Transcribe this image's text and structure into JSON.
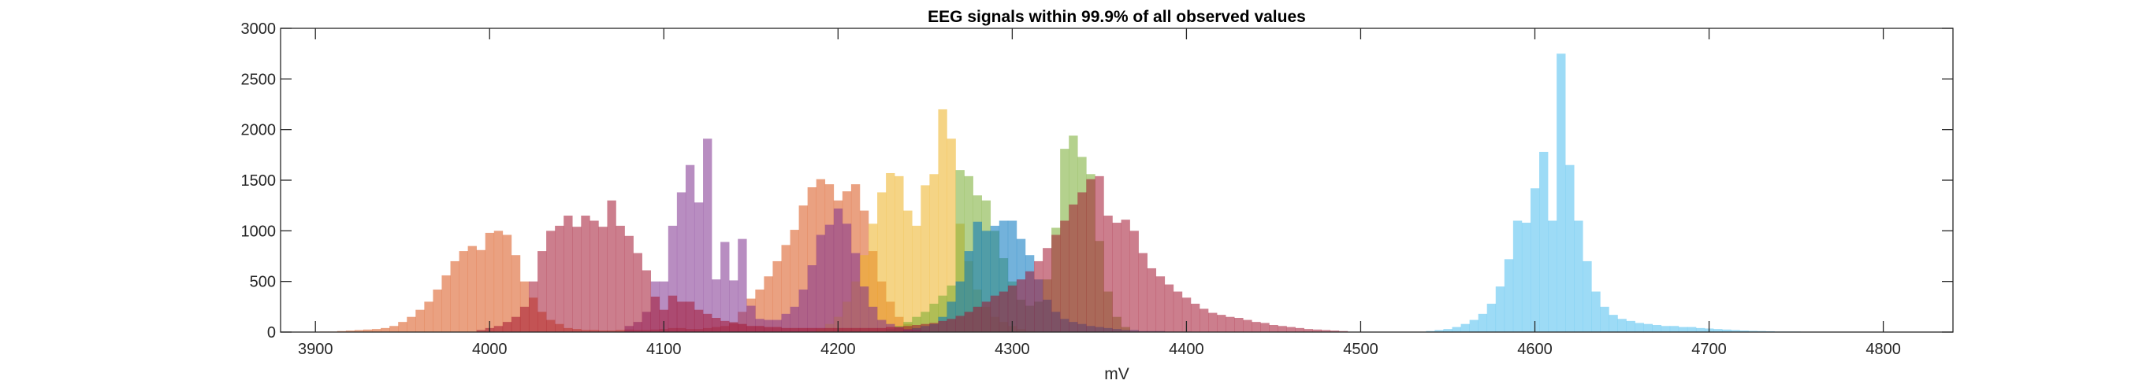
{
  "chart_data": {
    "type": "histogram",
    "title": "EEG signals within 99.9% of all observed values",
    "xlabel": "mV",
    "ylabel": "",
    "xlim": [
      3880,
      4840
    ],
    "ylim": [
      0,
      3000
    ],
    "xticks": [
      3900,
      4000,
      4100,
      4200,
      4300,
      4400,
      4500,
      4600,
      4700,
      4800
    ],
    "yticks": [
      0,
      500,
      1000,
      1500,
      2000,
      2500,
      3000
    ],
    "grid": false,
    "bin_width": 5,
    "bar_opacity": 0.55,
    "series": [
      {
        "color": "#D95319",
        "x": [
          3905,
          3910,
          3915,
          3920,
          3925,
          3930,
          3935,
          3940,
          3945,
          3950,
          3955,
          3960,
          3965,
          3970,
          3975,
          3980,
          3985,
          3990,
          3995,
          4000,
          4005,
          4010,
          4015,
          4020,
          4025,
          4030,
          4035,
          4040,
          4045,
          4050,
          4055,
          4060,
          4065,
          4070,
          4075,
          4080,
          4085,
          4090,
          4095,
          4100,
          4105,
          4110,
          4115,
          4120,
          4125,
          4130,
          4135,
          4140,
          4145,
          4150,
          4155,
          4160,
          4165,
          4170,
          4175,
          4180,
          4185,
          4190,
          4195,
          4200,
          4205,
          4210,
          4215,
          4220,
          4225,
          4230,
          4235,
          4240,
          4245,
          4250
        ],
        "values": [
          5,
          5,
          10,
          15,
          20,
          25,
          30,
          40,
          60,
          100,
          150,
          220,
          300,
          420,
          560,
          700,
          800,
          850,
          810,
          980,
          1000,
          960,
          760,
          500,
          340,
          200,
          120,
          80,
          40,
          30,
          20,
          20,
          15,
          15,
          20,
          25,
          20,
          20,
          25,
          30,
          40,
          40,
          30,
          30,
          40,
          50,
          60,
          100,
          200,
          330,
          420,
          550,
          700,
          860,
          1010,
          1250,
          1430,
          1510,
          1460,
          1300,
          1390,
          1460,
          1200,
          800,
          500,
          300,
          150,
          80,
          40,
          20
        ]
      },
      {
        "color": "#EDB120",
        "x": [
          4190,
          4195,
          4200,
          4205,
          4210,
          4215,
          4220,
          4225,
          4230,
          4235,
          4240,
          4245,
          4250,
          4255,
          4260,
          4265,
          4270,
          4275,
          4280,
          4285,
          4290,
          4295,
          4300,
          4305,
          4310
        ],
        "values": [
          30,
          80,
          150,
          300,
          500,
          760,
          1070,
          1380,
          1570,
          1540,
          1200,
          1050,
          1450,
          1560,
          2200,
          1910,
          1070,
          700,
          420,
          250,
          150,
          100,
          60,
          30,
          10
        ]
      },
      {
        "color": "#77AC30",
        "x": [
          4230,
          4235,
          4240,
          4245,
          4250,
          4255,
          4260,
          4265,
          4270,
          4275,
          4280,
          4285,
          4290,
          4295,
          4300,
          4305,
          4310,
          4315,
          4320,
          4325,
          4330,
          4335,
          4340,
          4345,
          4350,
          4355,
          4360,
          4365
        ],
        "values": [
          30,
          60,
          100,
          150,
          200,
          280,
          360,
          460,
          1600,
          1540,
          1350,
          1300,
          1000,
          730,
          500,
          320,
          260,
          300,
          520,
          1030,
          1810,
          1940,
          1730,
          1560,
          900,
          400,
          150,
          50
        ]
      },
      {
        "color": "#0072BD",
        "x": [
          4240,
          4245,
          4250,
          4255,
          4260,
          4265,
          4270,
          4275,
          4280,
          4285,
          4290,
          4295,
          4300,
          4305,
          4310,
          4315,
          4320,
          4325,
          4330,
          4335,
          4340,
          4345,
          4350,
          4355,
          4360,
          4365,
          4370,
          4375,
          4380,
          4385,
          4390,
          4395,
          4400
        ],
        "values": [
          20,
          40,
          60,
          80,
          150,
          300,
          500,
          800,
          1090,
          1000,
          1050,
          1100,
          1100,
          920,
          760,
          520,
          320,
          200,
          130,
          100,
          80,
          60,
          50,
          40,
          30,
          20,
          20,
          10,
          10,
          10,
          5,
          5,
          5
        ]
      },
      {
        "color": "#4DBEEE",
        "x": [
          4540,
          4545,
          4550,
          4555,
          4560,
          4565,
          4570,
          4575,
          4580,
          4585,
          4590,
          4595,
          4600,
          4605,
          4610,
          4615,
          4620,
          4625,
          4630,
          4635,
          4640,
          4645,
          4650,
          4655,
          4660,
          4665,
          4670,
          4675,
          4680,
          4685,
          4690,
          4695,
          4700,
          4705,
          4710,
          4715,
          4720,
          4725,
          4730,
          4735,
          4740,
          4745,
          4750
        ],
        "values": [
          10,
          20,
          30,
          50,
          80,
          120,
          180,
          280,
          450,
          720,
          1100,
          1080,
          1420,
          1780,
          1100,
          2750,
          1650,
          1100,
          700,
          400,
          250,
          170,
          130,
          110,
          90,
          80,
          70,
          60,
          60,
          50,
          50,
          40,
          35,
          30,
          25,
          20,
          15,
          12,
          10,
          8,
          5,
          5,
          5
        ]
      },
      {
        "color": "#7E2F8E",
        "x": [
          4080,
          4085,
          4090,
          4095,
          4100,
          4105,
          4110,
          4115,
          4120,
          4125,
          4130,
          4135,
          4140,
          4145,
          4150,
          4155,
          4160,
          4165,
          4170,
          4175,
          4180,
          4185,
          4190,
          4195,
          4200,
          4205,
          4210,
          4215,
          4220,
          4225,
          4230,
          4235,
          4240,
          4245,
          4250
        ],
        "values": [
          60,
          100,
          200,
          500,
          500,
          1050,
          1380,
          1650,
          1280,
          1910,
          520,
          890,
          510,
          920,
          260,
          130,
          120,
          120,
          180,
          250,
          420,
          660,
          960,
          1060,
          1220,
          1070,
          780,
          450,
          250,
          120,
          80,
          50,
          30,
          20,
          10
        ]
      },
      {
        "color": "#A2142F",
        "x": [
          3995,
          4000,
          4005,
          4010,
          4015,
          4020,
          4025,
          4030,
          4035,
          4040,
          4045,
          4050,
          4055,
          4060,
          4065,
          4070,
          4075,
          4080,
          4085,
          4090,
          4095,
          4100,
          4105,
          4110,
          4115,
          4120,
          4125,
          4130,
          4135,
          4140,
          4145,
          4150,
          4155,
          4160,
          4165,
          4170,
          4175,
          4180,
          4185,
          4190,
          4195,
          4200,
          4205,
          4210,
          4215,
          4220,
          4225,
          4230,
          4235,
          4240,
          4245,
          4250,
          4255,
          4260,
          4265,
          4270,
          4275,
          4280,
          4285,
          4290,
          4295,
          4300,
          4305,
          4310,
          4315,
          4320,
          4325,
          4330,
          4335,
          4340,
          4345,
          4350,
          4355,
          4360,
          4365,
          4370,
          4375,
          4380,
          4385,
          4390,
          4395,
          4400,
          4405,
          4410,
          4415,
          4420,
          4425,
          4430,
          4435,
          4440,
          4445,
          4450,
          4455,
          4460,
          4465,
          4470,
          4475,
          4480,
          4485,
          4490
        ],
        "values": [
          20,
          40,
          60,
          100,
          150,
          250,
          500,
          800,
          1000,
          1050,
          1150,
          1040,
          1150,
          1100,
          1040,
          1300,
          1050,
          950,
          780,
          610,
          350,
          220,
          360,
          300,
          300,
          220,
          180,
          140,
          110,
          90,
          80,
          60,
          60,
          50,
          50,
          40,
          40,
          40,
          40,
          40,
          40,
          40,
          40,
          40,
          40,
          40,
          40,
          50,
          50,
          60,
          70,
          80,
          90,
          110,
          130,
          160,
          200,
          250,
          300,
          360,
          400,
          460,
          520,
          600,
          700,
          830,
          960,
          1100,
          1260,
          1380,
          1510,
          1540,
          1150,
          1080,
          1110,
          1000,
          780,
          630,
          550,
          470,
          400,
          340,
          280,
          230,
          190,
          170,
          150,
          140,
          120,
          100,
          90,
          70,
          60,
          50,
          40,
          30,
          25,
          20,
          15,
          10
        ]
      }
    ]
  }
}
